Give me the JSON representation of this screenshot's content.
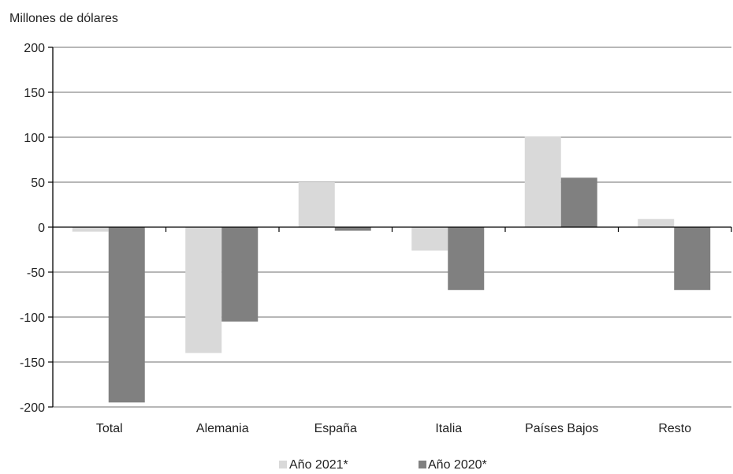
{
  "chart_data": {
    "type": "bar",
    "title": "",
    "ylabel": "Millones de dólares",
    "xlabel": "",
    "ylim": [
      -200,
      200
    ],
    "yticks": [
      200,
      150,
      100,
      50,
      0,
      -50,
      -100,
      -150,
      -200
    ],
    "grid": true,
    "legend_position": "bottom",
    "categories": [
      "Total",
      "Alemania",
      "España",
      "Italia",
      "Países Bajos",
      "Resto"
    ],
    "series": [
      {
        "name": "Año 2021*",
        "color": "#d9d9d9",
        "values": [
          -5,
          -140,
          50,
          -26,
          101,
          9
        ]
      },
      {
        "name": "Año 2020*",
        "color": "#808080",
        "values": [
          -195,
          -105,
          -4,
          -70,
          55,
          -70
        ]
      }
    ]
  }
}
